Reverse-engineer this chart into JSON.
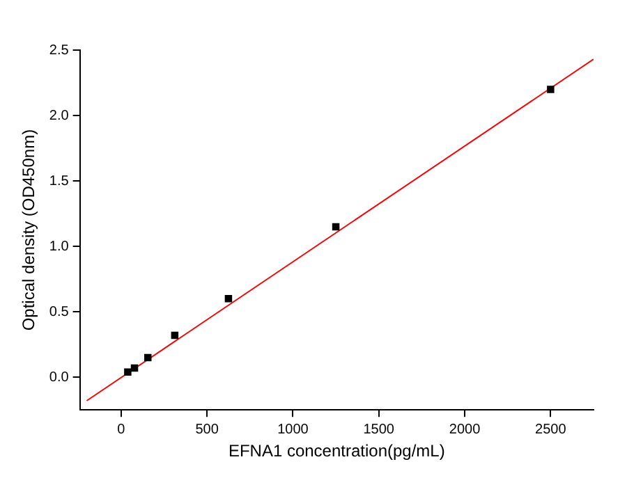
{
  "chart_data": {
    "type": "scatter",
    "xlabel": "EFNA1 concentration(pg/mL)",
    "ylabel": "Optical density (OD450nm)",
    "xlim": [
      -240,
      2750
    ],
    "xticks": [
      0,
      500,
      1000,
      1500,
      2000,
      2500
    ],
    "ylim": [
      -0.25,
      2.5
    ],
    "yticks": [
      {
        "value": 0,
        "label": "0.0"
      },
      0.5,
      {
        "value": 1,
        "label": "1.0"
      },
      1.5,
      {
        "value": 2,
        "label": "2.0"
      },
      2.5
    ],
    "grid": false,
    "legend": false,
    "series": [
      {
        "color": "#000000",
        "marker": "square",
        "x": [
          39,
          78,
          156,
          312.5,
          625,
          1250,
          2500
        ],
        "values": [
          0.04,
          0.07,
          0.15,
          0.32,
          0.6,
          1.15,
          2.2
        ]
      },
      {
        "type": "line",
        "marker": "none",
        "color": "#ff0000",
        "x": [
          -200,
          2750
        ],
        "values": [
          -0.18,
          2.43
        ]
      }
    ]
  }
}
